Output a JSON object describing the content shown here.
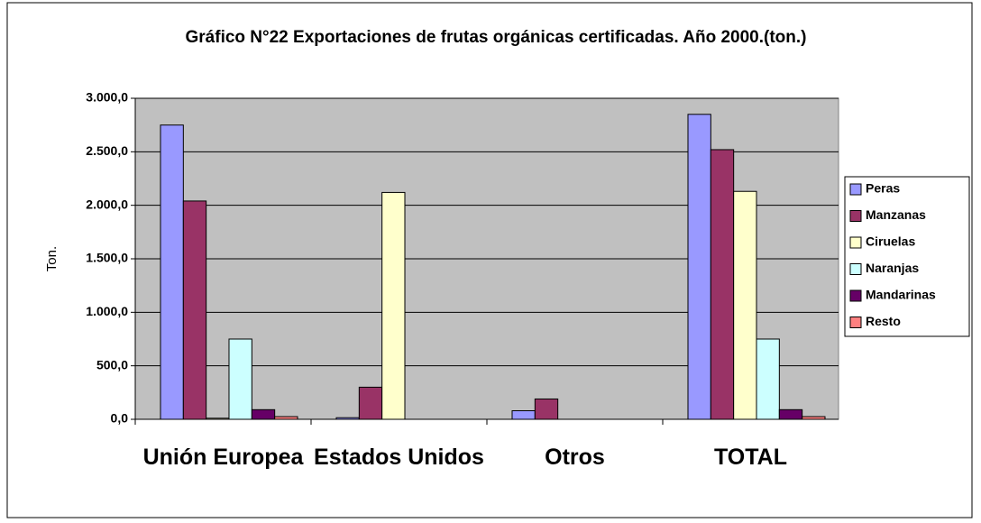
{
  "chart_data": {
    "type": "bar",
    "title": "Gráfico N°22 Exportaciones de frutas orgánicas certificadas. Año 2000.(ton.)",
    "y_label": "Ton.",
    "categories": [
      "Unión Europea",
      "Estados Unidos",
      "Otros",
      "TOTAL"
    ],
    "series": [
      {
        "name": "Peras",
        "color": "#9999ff",
        "values": [
          2750,
          15,
          80,
          2850
        ]
      },
      {
        "name": "Manzanas",
        "color": "#993366",
        "values": [
          2040,
          300,
          190,
          2520
        ]
      },
      {
        "name": "Ciruelas",
        "color": "#ffffcc",
        "values": [
          10,
          2120,
          0,
          2130
        ]
      },
      {
        "name": "Naranjas",
        "color": "#ccffff",
        "values": [
          750,
          0,
          0,
          750
        ]
      },
      {
        "name": "Mandarinas",
        "color": "#660066",
        "values": [
          90,
          0,
          0,
          90
        ]
      },
      {
        "name": "Resto",
        "color": "#ff8080",
        "values": [
          25,
          0,
          0,
          25
        ]
      }
    ],
    "ylim": [
      0,
      3000
    ],
    "yticks": [
      {
        "value": 0,
        "label": "0,0"
      },
      {
        "value": 500,
        "label": "500,0"
      },
      {
        "value": 1000,
        "label": "1.000,0"
      },
      {
        "value": 1500,
        "label": "1.500,0"
      },
      {
        "value": 2000,
        "label": "2.000,0"
      },
      {
        "value": 2500,
        "label": "2.500,0"
      },
      {
        "value": 3000,
        "label": "3.000,0"
      }
    ],
    "grid": true,
    "legend": "right"
  }
}
